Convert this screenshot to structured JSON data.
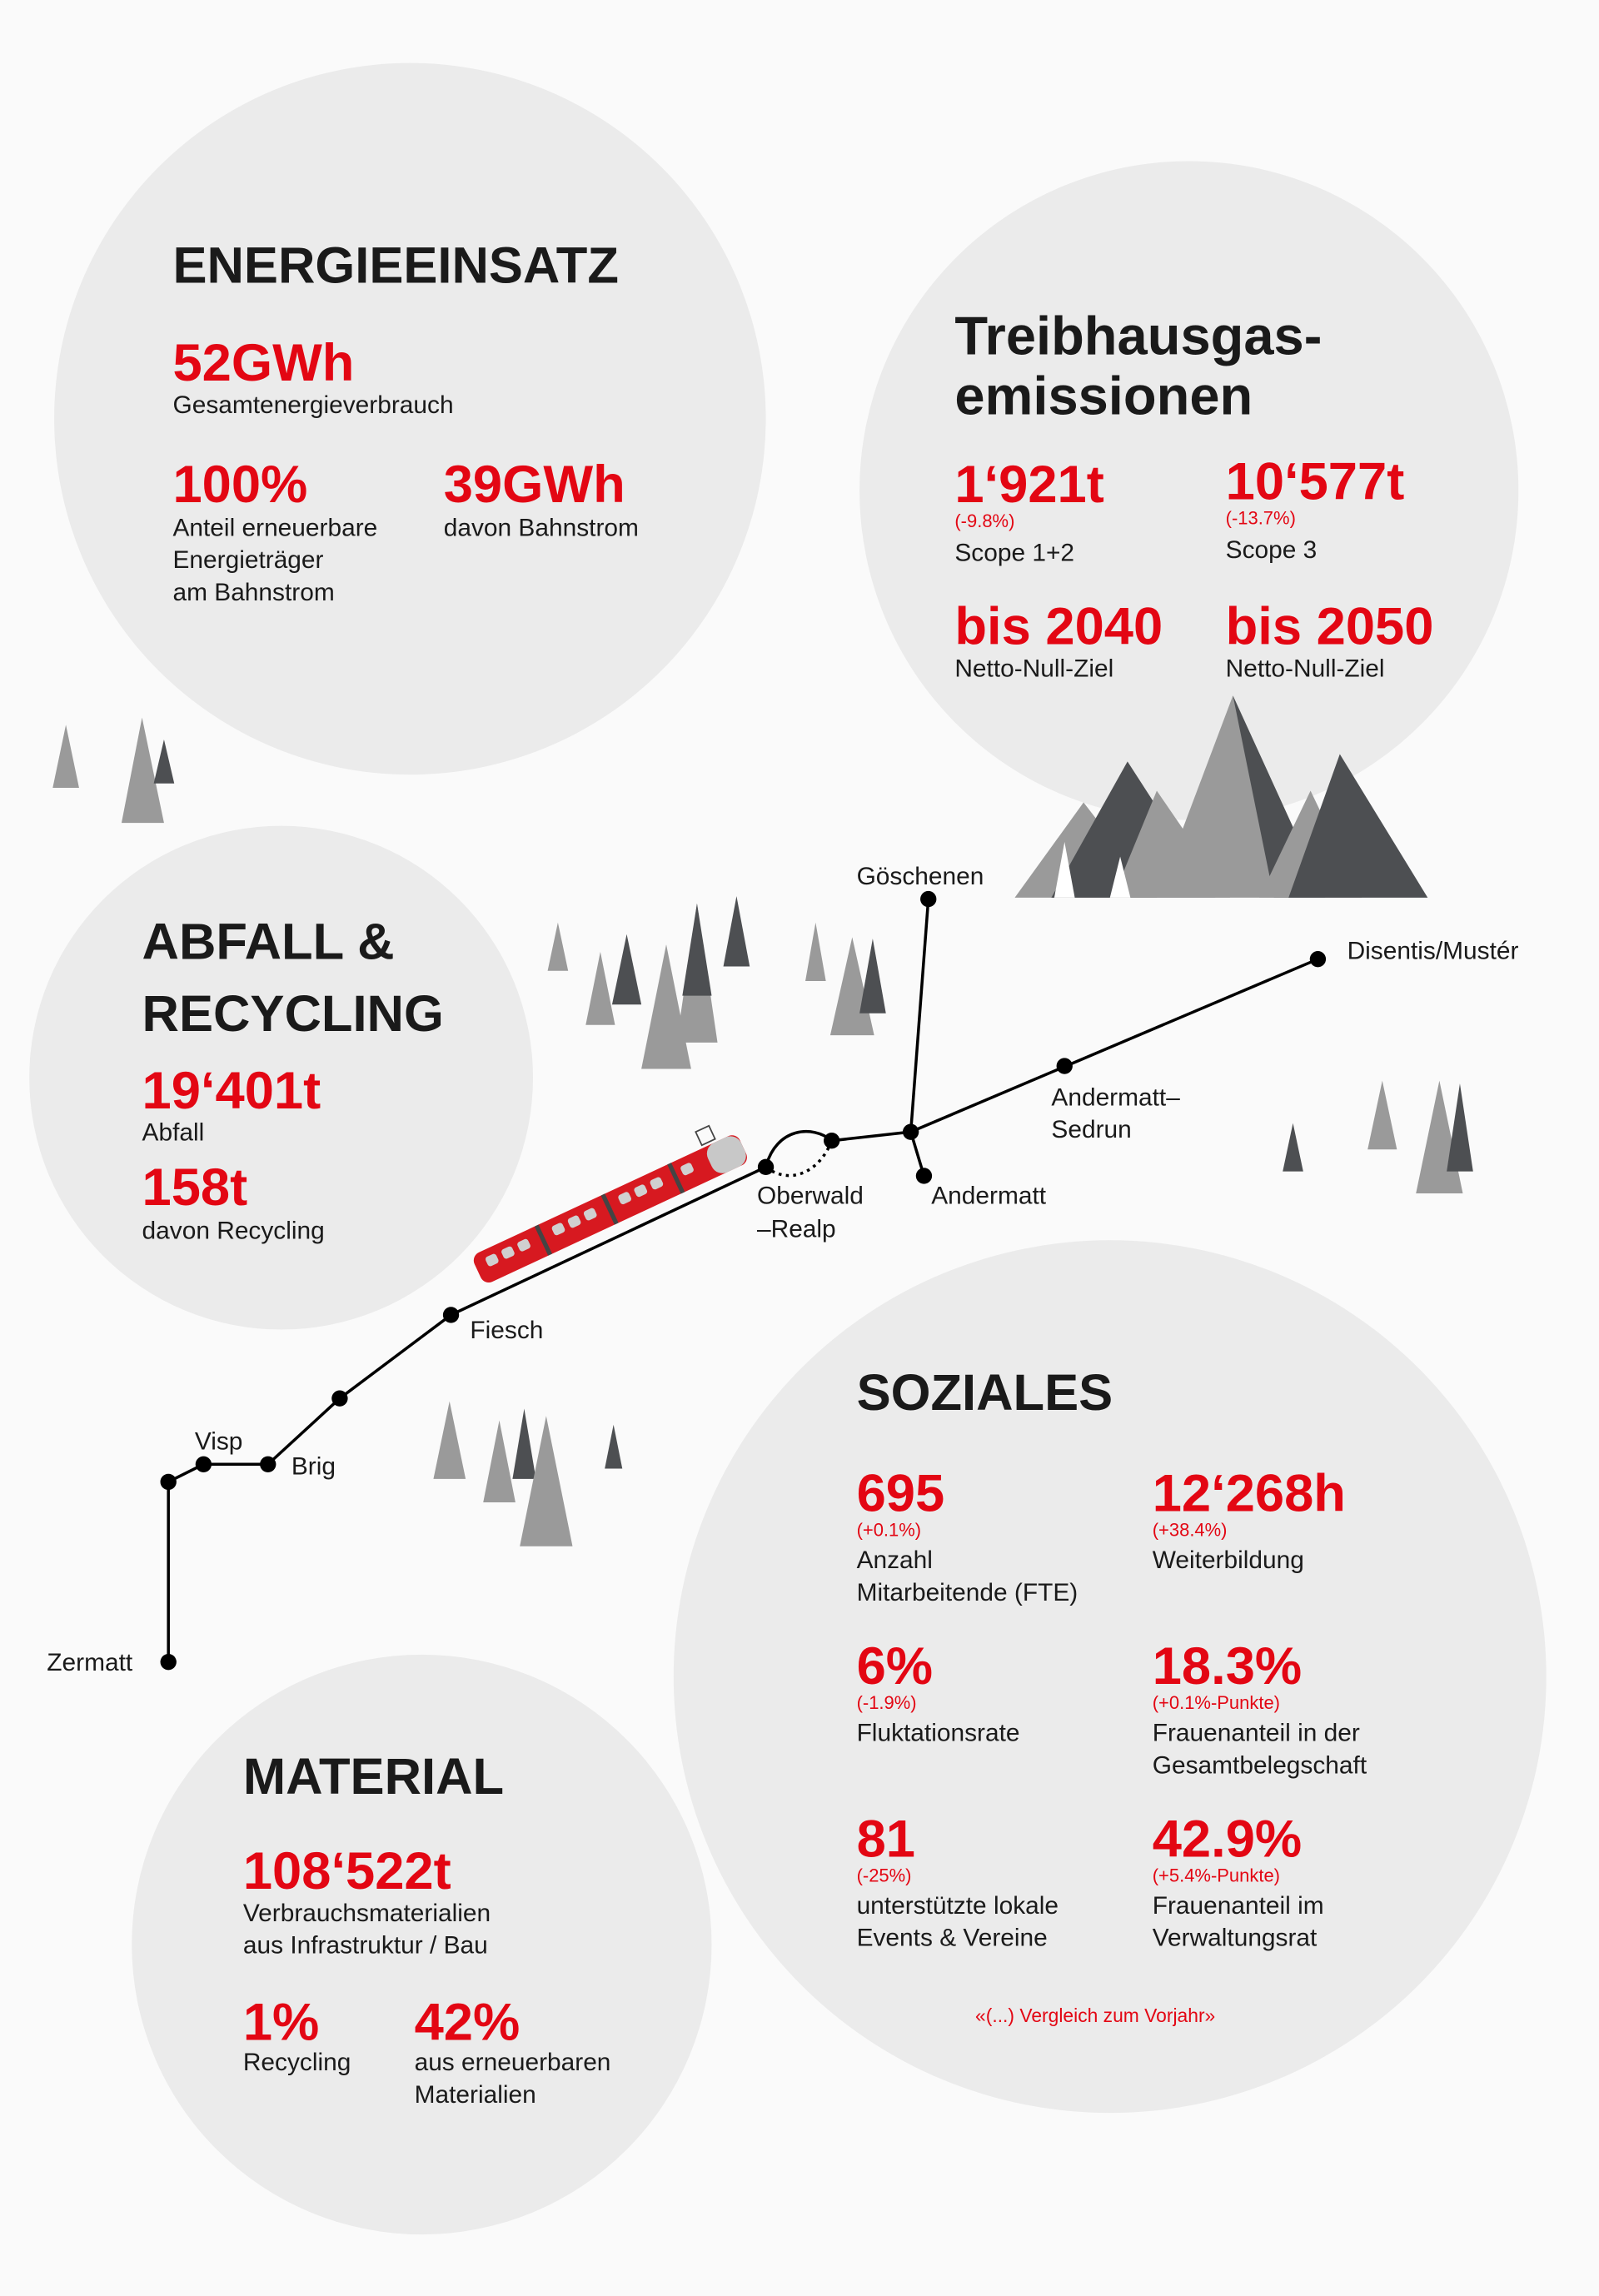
{
  "colors": {
    "accent": "#e30613",
    "text": "#1a1a1a",
    "circle": "#ebebeb",
    "background": "#fafafa"
  },
  "energie": {
    "title": "ENERGIEEINSATZ",
    "total_value": "52GWh",
    "total_label": "Gesamtenergieverbrauch",
    "renewable_value": "100%",
    "renewable_label": [
      "Anteil erneuerbare",
      "Energieträger",
      "am Bahnstrom"
    ],
    "rail_value": "39GWh",
    "rail_label": "davon Bahnstrom"
  },
  "treibhaus": {
    "title": [
      "Treibhausgas-",
      "emissionen"
    ],
    "scope12_value": "1‘921t",
    "scope12_change": "(-9.8%)",
    "scope12_label": "Scope 1+2",
    "scope3_value": "10‘577t",
    "scope3_change": "(-13.7%)",
    "scope3_label": "Scope 3",
    "goal1_value": "bis 2040",
    "goal1_label": "Netto-Null-Ziel",
    "goal2_value": "bis 2050",
    "goal2_label": "Netto-Null-Ziel"
  },
  "abfall": {
    "title": [
      "ABFALL &",
      "RECYCLING"
    ],
    "waste_value": "19‘401t",
    "waste_label": "Abfall",
    "recycling_value": "158t",
    "recycling_label": "davon Recycling"
  },
  "map": {
    "stations": {
      "goeschenen": "Göschenen",
      "disentis": "Disentis/Mustér",
      "andermatt_sedrun": [
        "Andermatt–",
        "Sedrun"
      ],
      "andermatt": "Andermatt",
      "oberwald": [
        "Oberwald",
        "–Realp"
      ],
      "fiesch": "Fiesch",
      "brig": "Brig",
      "visp": "Visp",
      "zermatt": "Zermatt"
    }
  },
  "soziales": {
    "title": "SOZIALES",
    "items": [
      {
        "value": "695",
        "change": "(+0.1%)",
        "label": [
          "Anzahl",
          "Mitarbeitende (FTE)"
        ]
      },
      {
        "value": "12‘268h",
        "change": "(+38.4%)",
        "label": [
          "Weiterbildung"
        ]
      },
      {
        "value": "6%",
        "change": "(-1.9%)",
        "label": [
          "Fluktationsrate"
        ]
      },
      {
        "value": "18.3%",
        "change": "(+0.1%-Punkte)",
        "label": [
          "Frauenanteil in der",
          "Gesamtbelegschaft"
        ]
      },
      {
        "value": "81",
        "change": "(-25%)",
        "label": [
          "unterstützte lokale",
          "Events & Vereine"
        ]
      },
      {
        "value": "42.9%",
        "change": "(+5.4%-Punkte)",
        "label": [
          "Frauenanteil im",
          "Verwaltungsrat"
        ]
      }
    ],
    "note": "«(...) Vergleich zum Vorjahr»"
  },
  "material": {
    "title": "MATERIAL",
    "consumption_value": "108‘522t",
    "consumption_label": [
      "Verbrauchsmaterialien",
      "aus Infrastruktur / Bau"
    ],
    "recycling_value": "1%",
    "recycling_label": "Recycling",
    "renewable_value": "42%",
    "renewable_label": [
      "aus erneuerbaren",
      "Materialien"
    ]
  }
}
